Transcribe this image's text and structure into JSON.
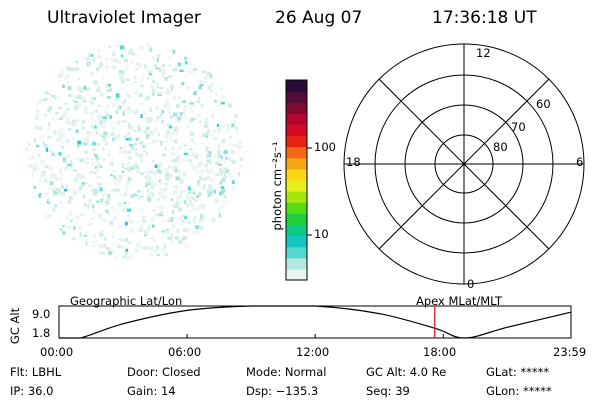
{
  "header": {
    "instrument": "Ultraviolet Imager",
    "date": "26 Aug 07",
    "time": "17:36:18 UT"
  },
  "colorbar": {
    "unit_label": "photon cm⁻²s⁻¹",
    "ticks": [
      "100",
      "10"
    ],
    "colors": [
      "#e8f4f2",
      "#b2e8e2",
      "#56d7ce",
      "#14c6c4",
      "#0dc98a",
      "#22cc3c",
      "#56dc16",
      "#a6e70a",
      "#e6ef1a",
      "#fbd912",
      "#f9a316",
      "#f46a14",
      "#ea2414",
      "#d30c22",
      "#b2082e",
      "#7e0a32",
      "#4e0c36",
      "#2a0c3a"
    ]
  },
  "polar": {
    "clock_labels": [
      "12",
      "18",
      "6",
      "0"
    ],
    "lat_labels": [
      "60",
      "70",
      "80"
    ]
  },
  "timeline": {
    "left_title": "Geographic Lat/Lon",
    "right_title": "Apex MLat/MLT",
    "ylabel": "GC Alt",
    "ymax_label": "9.0",
    "ymin_label": "1.8",
    "ticks": [
      "00:00",
      "06:00",
      "12:00",
      "18:00",
      "23:59"
    ],
    "marker_color": "#d81c1c"
  },
  "status": {
    "filter": "Flt: LBHL",
    "ip": "IP: 36.0",
    "door": "Door: Closed",
    "gain": "Gain: 14",
    "mode": "Mode: Normal",
    "dsp": "Dsp: −135.3",
    "gc_alt": "GC Alt: 4.0 Re",
    "seq": "Seq: 39",
    "glat": "GLat: *****",
    "glon": "GLon: *****"
  },
  "chart_data": {
    "type": "line",
    "title": "",
    "xlabel": "",
    "ylabel": "GC Alt",
    "x": [
      "00:00",
      "01:00",
      "03:00",
      "06:00",
      "09:00",
      "12:00",
      "15:00",
      "17:36",
      "19:00",
      "21:00",
      "23:59"
    ],
    "series": [
      {
        "values": [
          1.8,
          1.8,
          5.0,
          8.0,
          9.0,
          9.0,
          7.3,
          4.0,
          1.8,
          4.2,
          7.6
        ]
      }
    ],
    "ylim": [
      1.8,
      9.0
    ],
    "marker_x": "17:36"
  }
}
